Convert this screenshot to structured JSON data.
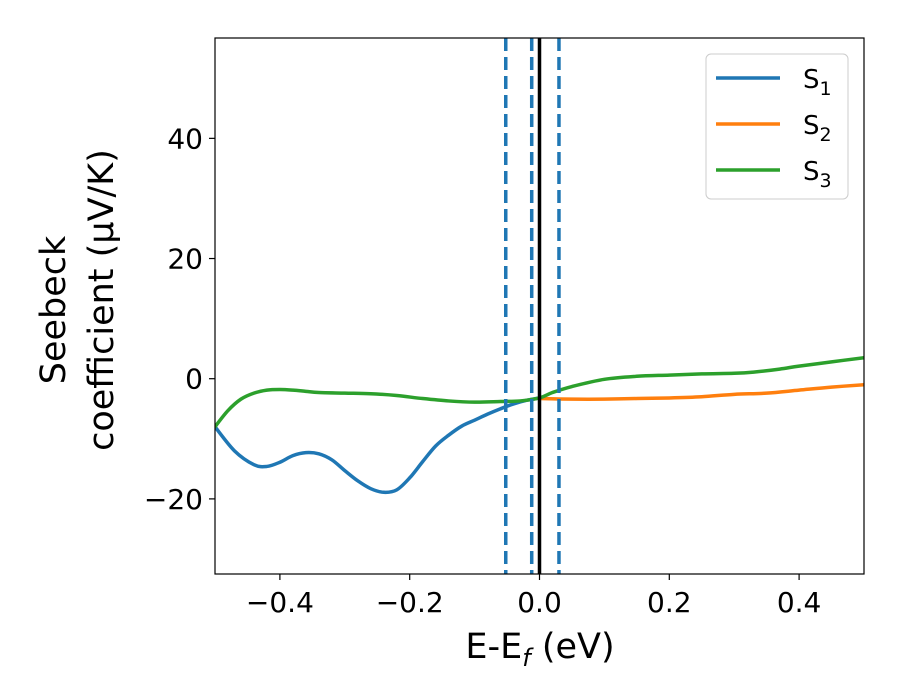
{
  "chart_data": {
    "type": "line",
    "xlabel": {
      "main": "E-E",
      "sub": "f",
      "tail": " (eV)"
    },
    "ylabel": {
      "line1": "Seebeck",
      "line2": "coefficient  (μV/K)"
    },
    "xlim": [
      -0.5,
      0.5
    ],
    "ylim": [
      -32.5,
      56.7
    ],
    "x_ticks": [
      -0.4,
      -0.2,
      0.0,
      0.2,
      0.4
    ],
    "x_tick_labels": [
      "−0.4",
      "−0.2",
      "0.0",
      "0.2",
      "0.4"
    ],
    "y_ticks": [
      -20,
      0,
      20,
      40
    ],
    "y_tick_labels": [
      "−20",
      "0",
      "20",
      "40"
    ],
    "grid": false,
    "legend": {
      "placement": "top-right"
    },
    "vlines": [
      {
        "x": 0.0,
        "style": "solid",
        "color": "#000000"
      },
      {
        "x": -0.052,
        "style": "dashed",
        "color": "#1f77b4"
      },
      {
        "x": -0.012,
        "style": "dashed",
        "color": "#1f77b4"
      },
      {
        "x": 0.03,
        "style": "dashed",
        "color": "#1f77b4"
      }
    ],
    "series": [
      {
        "name": "S",
        "sub": "1",
        "color": "#1f77b4",
        "x": [
          -0.5,
          -0.47,
          -0.44,
          -0.42,
          -0.4,
          -0.38,
          -0.36,
          -0.34,
          -0.32,
          -0.3,
          -0.28,
          -0.26,
          -0.24,
          -0.22,
          -0.2,
          -0.18,
          -0.16,
          -0.14,
          -0.12,
          -0.1,
          -0.08,
          -0.06,
          -0.04,
          -0.02,
          0.0
        ],
        "y": [
          -8.0,
          -12.0,
          -14.3,
          -14.6,
          -13.9,
          -12.8,
          -12.3,
          -12.5,
          -13.5,
          -15.3,
          -17.0,
          -18.3,
          -18.9,
          -18.5,
          -16.5,
          -13.8,
          -11.2,
          -9.4,
          -7.9,
          -6.9,
          -5.9,
          -5.0,
          -4.2,
          -3.6,
          -3.2
        ]
      },
      {
        "name": "S",
        "sub": "2",
        "color": "#ff7f0e",
        "x": [
          0.0,
          0.05,
          0.1,
          0.15,
          0.2,
          0.25,
          0.3,
          0.35,
          0.4,
          0.45,
          0.5
        ],
        "y": [
          -3.3,
          -3.4,
          -3.4,
          -3.3,
          -3.2,
          -3.0,
          -2.6,
          -2.4,
          -1.9,
          -1.4,
          -1.0
        ]
      },
      {
        "name": "S",
        "sub": "3",
        "color": "#2ca02c",
        "x": [
          -0.5,
          -0.48,
          -0.46,
          -0.44,
          -0.42,
          -0.4,
          -0.38,
          -0.36,
          -0.34,
          -0.3,
          -0.26,
          -0.22,
          -0.18,
          -0.14,
          -0.1,
          -0.06,
          -0.03,
          0.0,
          0.02,
          0.05,
          0.1,
          0.15,
          0.2,
          0.25,
          0.3,
          0.33,
          0.37,
          0.4,
          0.45,
          0.5
        ],
        "y": [
          -8.0,
          -5.3,
          -3.4,
          -2.4,
          -1.9,
          -1.8,
          -1.9,
          -2.1,
          -2.3,
          -2.4,
          -2.5,
          -2.8,
          -3.3,
          -3.7,
          -3.9,
          -3.8,
          -3.7,
          -3.2,
          -2.3,
          -1.3,
          -0.1,
          0.4,
          0.6,
          0.8,
          0.9,
          1.1,
          1.6,
          2.1,
          2.8,
          3.5
        ]
      }
    ]
  }
}
